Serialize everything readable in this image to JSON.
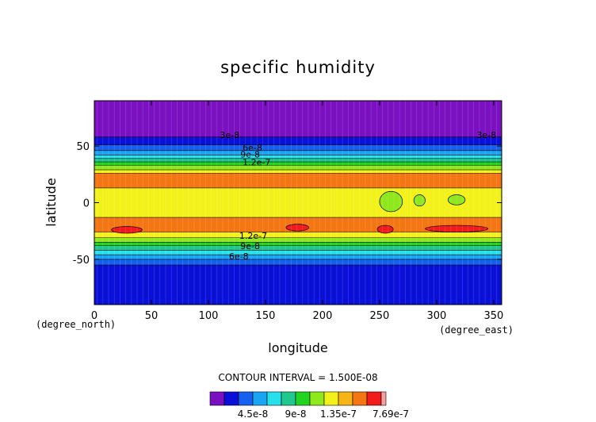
{
  "chart_data": {
    "type": "heatmap",
    "subtype": "filled-contour",
    "title": "specific humidity",
    "xlabel": "longitude",
    "ylabel": "latitude",
    "x_unit_label": "(degree_east)",
    "y_unit_label": "(degree_north)",
    "xlim": [
      0,
      357
    ],
    "ylim": [
      -90,
      90
    ],
    "x_ticks": [
      0,
      50,
      100,
      150,
      200,
      250,
      300,
      350
    ],
    "y_ticks": [
      -50,
      0,
      50
    ],
    "contour_interval_label": "CONTOUR INTERVAL = 1.500E-08",
    "contour_labels": [
      "3e-8",
      "6e-8",
      "9e-8",
      "1.2e-7",
      "1.2e-7",
      "9e-8",
      "6e-8",
      "3e-8"
    ],
    "colorbar": {
      "tick_labels": [
        "4.5e-8",
        "9e-8",
        "1.35e-7",
        "7.69e-7"
      ],
      "bins": [
        {
          "from": 0,
          "to": 1.5e-08,
          "color": "#7a10c0"
        },
        {
          "from": 1.5e-08,
          "to": 3e-08,
          "color": "#0a10d8"
        },
        {
          "from": 3e-08,
          "to": 4.5e-08,
          "color": "#1460f0"
        },
        {
          "from": 4.5e-08,
          "to": 6e-08,
          "color": "#1aa4f4"
        },
        {
          "from": 6e-08,
          "to": 7.5e-08,
          "color": "#28e0ec"
        },
        {
          "from": 7.5e-08,
          "to": 9e-08,
          "color": "#20c890"
        },
        {
          "from": 9e-08,
          "to": 1.05e-07,
          "color": "#22d322"
        },
        {
          "from": 1.05e-07,
          "to": 1.2e-07,
          "color": "#8ee81c"
        },
        {
          "from": 1.2e-07,
          "to": 1.35e-07,
          "color": "#f2f21a"
        },
        {
          "from": 1.35e-07,
          "to": 1.5e-07,
          "color": "#f8b414"
        },
        {
          "from": 1.5e-07,
          "to": 1.65e-07,
          "color": "#f47612"
        },
        {
          "from": 1.65e-07,
          "to": 1.8e-07,
          "color": "#f21a1a"
        },
        {
          "from": 1.8e-07,
          "to": 7.69e-07,
          "color": "#f6a0a0"
        }
      ]
    },
    "zonal_bands": [
      {
        "lat_from": 90,
        "lat_to": 58,
        "level": 0
      },
      {
        "lat_from": 58,
        "lat_to": 51,
        "level": 1
      },
      {
        "lat_from": 51,
        "lat_to": 46,
        "level": 2
      },
      {
        "lat_from": 46,
        "lat_to": 42,
        "level": 3
      },
      {
        "lat_from": 42,
        "lat_to": 39,
        "level": 4
      },
      {
        "lat_from": 39,
        "lat_to": 36,
        "level": 5
      },
      {
        "lat_from": 36,
        "lat_to": 33,
        "level": 6
      },
      {
        "lat_from": 33,
        "lat_to": 29,
        "level": 7
      },
      {
        "lat_from": 29,
        "lat_to": 26,
        "level": 8
      },
      {
        "lat_from": 26,
        "lat_to": 13,
        "level": 10
      },
      {
        "lat_from": 13,
        "lat_to": -13,
        "level": 8
      },
      {
        "lat_from": -13,
        "lat_to": -26,
        "level": 10
      },
      {
        "lat_from": -26,
        "lat_to": -31,
        "level": 8
      },
      {
        "lat_from": -31,
        "lat_to": -35,
        "level": 7
      },
      {
        "lat_from": -35,
        "lat_to": -38,
        "level": 6
      },
      {
        "lat_from": -38,
        "lat_to": -42,
        "level": 5
      },
      {
        "lat_from": -42,
        "lat_to": -46,
        "level": 4
      },
      {
        "lat_from": -46,
        "lat_to": -50,
        "level": 3
      },
      {
        "lat_from": -50,
        "lat_to": -55,
        "level": 2
      },
      {
        "lat_from": -55,
        "lat_to": -90,
        "level": 1
      }
    ],
    "anomalies": [
      {
        "lon_from": 250,
        "lon_to": 270,
        "lat_from": 10,
        "lat_to": -8,
        "level": 7
      },
      {
        "lon_from": 280,
        "lon_to": 290,
        "lat_from": 7,
        "lat_to": -3,
        "level": 7
      },
      {
        "lon_from": 310,
        "lon_to": 325,
        "lat_from": 7,
        "lat_to": -2,
        "level": 7
      },
      {
        "lon_from": 290,
        "lon_to": 345,
        "lat_from": -20,
        "lat_to": -26,
        "level": 11
      },
      {
        "lon_from": 248,
        "lon_to": 262,
        "lat_from": -20,
        "lat_to": -27,
        "level": 11
      },
      {
        "lon_from": 15,
        "lon_to": 42,
        "lat_from": -21,
        "lat_to": -27,
        "level": 11
      },
      {
        "lon_from": 168,
        "lon_to": 188,
        "lat_from": -19,
        "lat_to": -25,
        "level": 11
      }
    ]
  }
}
